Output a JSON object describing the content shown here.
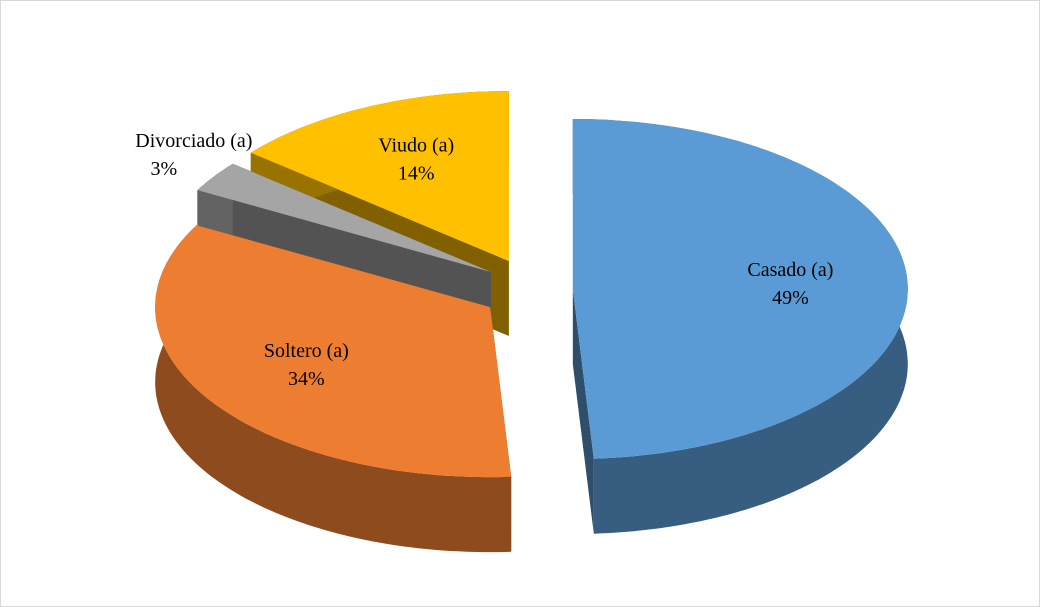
{
  "chart_data": {
    "type": "pie",
    "categories": [
      "Casado (a)",
      "Soltero (a)",
      "Divorciado (a)",
      "Viudo (a)"
    ],
    "values": [
      49,
      34,
      3,
      14
    ],
    "value_labels": [
      "49%",
      "34%",
      "3%",
      "14%"
    ],
    "colors": [
      "#5b9bd5",
      "#ed7d31",
      "#a5a5a5",
      "#ffc000"
    ],
    "exploded": true,
    "three_d": true
  }
}
